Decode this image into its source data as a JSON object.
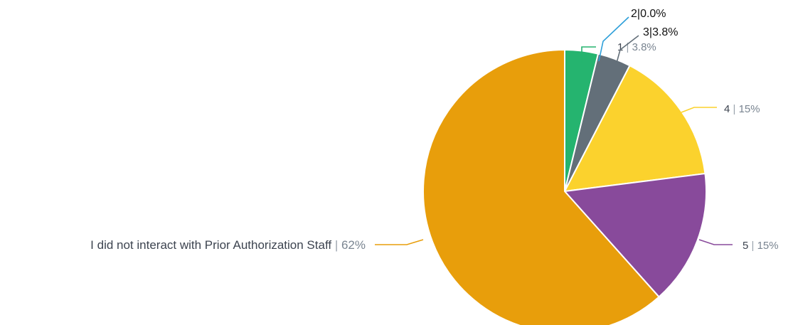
{
  "chart_data": {
    "type": "pie",
    "slices": [
      {
        "label": "1",
        "percent_label": "3.8%",
        "value": 3.8,
        "color": "#25b46f",
        "label_style": "muted"
      },
      {
        "label": "2",
        "percent_label": "0.0%",
        "value": 0.0,
        "color": "#2d9fd9",
        "label_style": "dark"
      },
      {
        "label": "3",
        "percent_label": "3.8%",
        "value": 3.8,
        "color": "#636f79",
        "label_style": "dark"
      },
      {
        "label": "4",
        "percent_label": "15%",
        "value": 15.4,
        "color": "#fbd22d",
        "label_style": "muted"
      },
      {
        "label": "5",
        "percent_label": "15%",
        "value": 15.4,
        "color": "#884a9b",
        "label_style": "muted"
      },
      {
        "label": "I did not interact with Prior Authorization Staff",
        "percent_label": "62%",
        "value": 61.6,
        "color": "#e89e0b",
        "label_style": "muted"
      }
    ],
    "separator": "|",
    "slice_border_color": "#ffffff"
  }
}
